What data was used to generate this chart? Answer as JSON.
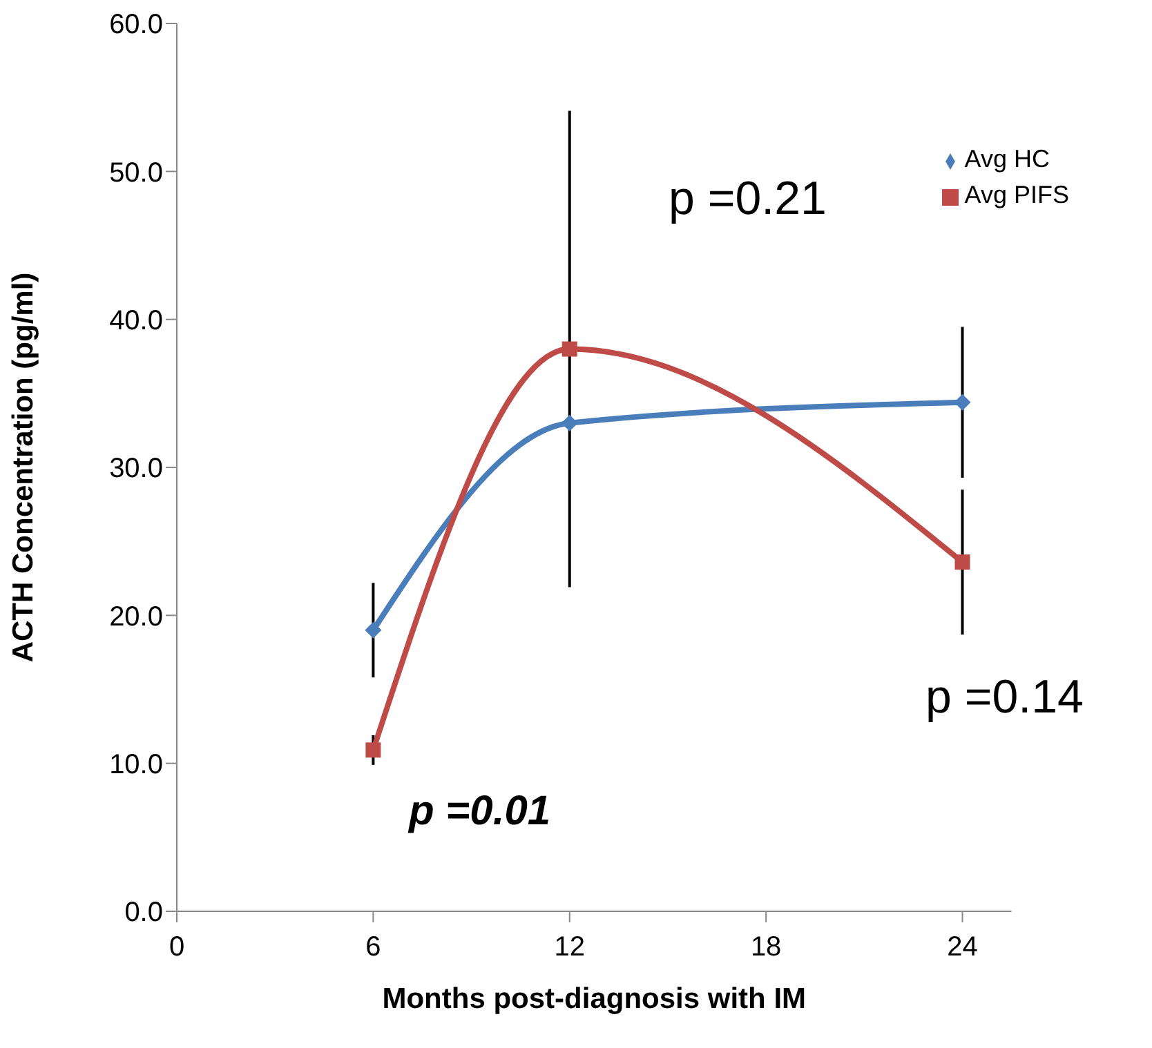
{
  "chart_data": {
    "type": "line",
    "xlabel": "Months post-diagnosis with IM",
    "ylabel": "ACTH Concentration (pg/ml)",
    "x": [
      6,
      12,
      24
    ],
    "series": [
      {
        "name": "Avg HC",
        "color": "#4a7ebb",
        "values": [
          19.0,
          33.0,
          34.4
        ],
        "errors": [
          3.2,
          null,
          5.1
        ],
        "marker": "diamond"
      },
      {
        "name": "Avg PIFS",
        "color": "#be4b48",
        "values": [
          10.9,
          38.0,
          23.6
        ],
        "errors": [
          1.0,
          16.1,
          4.9
        ],
        "marker": "square"
      }
    ],
    "xlim": [
      0,
      25.5
    ],
    "xticks": [
      0,
      6,
      12,
      18,
      24
    ],
    "ylim": [
      0,
      60
    ],
    "yticks": [
      {
        "value": 0,
        "label": "0.0"
      },
      {
        "value": 10,
        "label": "10.0"
      },
      {
        "value": 20,
        "label": "20.0"
      },
      {
        "value": 30,
        "label": "30.0"
      },
      {
        "value": 40,
        "label": "40.0"
      },
      {
        "value": 50,
        "label": "50.0"
      },
      {
        "value": 60,
        "label": "60.0"
      }
    ],
    "annotations": [
      "p =0.01",
      "p =0.21",
      "p =0.14"
    ],
    "legend": "top right",
    "grid": false
  }
}
